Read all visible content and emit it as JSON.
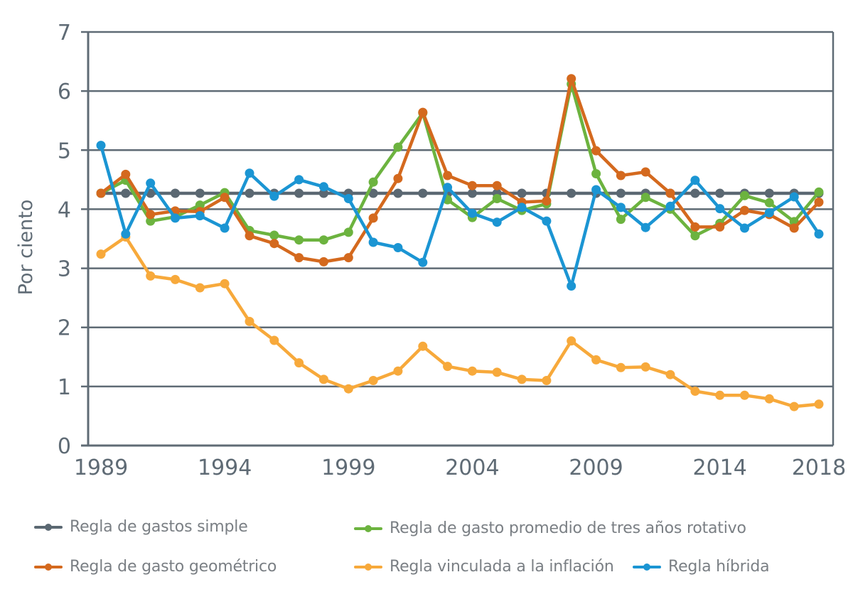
{
  "chart_data": {
    "type": "line",
    "title": "",
    "xlabel": "",
    "ylabel": "Por ciento",
    "ylim": [
      0,
      7
    ],
    "xlim": [
      1989,
      2018
    ],
    "grid": true,
    "legend_position": "bottom",
    "y_ticks": [
      "0",
      "1",
      "2",
      "3",
      "4",
      "5",
      "6",
      "7"
    ],
    "x_ticks": [
      "1989",
      "1994",
      "1999",
      "2004",
      "2009",
      "2014",
      "2018"
    ],
    "x": [
      1989,
      1990,
      1991,
      1992,
      1993,
      1994,
      1995,
      1996,
      1997,
      1998,
      1999,
      2000,
      2001,
      2002,
      2003,
      2004,
      2005,
      2006,
      2007,
      2008,
      2009,
      2010,
      2011,
      2012,
      2013,
      2014,
      2015,
      2016,
      2017,
      2018
    ],
    "series": [
      {
        "key": "simple",
        "name": "Regla de gastos simple",
        "color": "#5b6872",
        "values": [
          4.27,
          4.27,
          4.27,
          4.27,
          4.27,
          4.27,
          4.27,
          4.27,
          4.27,
          4.27,
          4.27,
          4.27,
          4.27,
          4.27,
          4.27,
          4.27,
          4.27,
          4.27,
          4.27,
          4.27,
          4.27,
          4.27,
          4.27,
          4.27,
          4.27,
          4.27,
          4.27,
          4.27,
          4.27,
          4.27
        ]
      },
      {
        "key": "promedio",
        "name": "Regla de gasto promedio de tres años rotativo",
        "color": "#6cb33f",
        "values": [
          4.27,
          4.49,
          3.8,
          3.87,
          4.07,
          4.28,
          3.64,
          3.56,
          3.48,
          3.48,
          3.61,
          4.46,
          5.05,
          5.63,
          4.16,
          3.86,
          4.18,
          3.98,
          4.09,
          6.12,
          4.6,
          3.83,
          4.2,
          4.0,
          3.55,
          3.76,
          4.23,
          4.11,
          3.79,
          4.29
        ]
      },
      {
        "key": "geometrico",
        "name": "Regla de gasto geométrico",
        "color": "#d4691e",
        "values": [
          4.27,
          4.59,
          3.91,
          3.97,
          3.96,
          4.2,
          3.55,
          3.42,
          3.18,
          3.11,
          3.18,
          3.85,
          4.52,
          5.64,
          4.57,
          4.4,
          4.4,
          4.12,
          4.14,
          6.21,
          4.99,
          4.57,
          4.63,
          4.27,
          3.7,
          3.7,
          3.98,
          3.91,
          3.68,
          4.12
        ]
      },
      {
        "key": "inflacion",
        "name": "Regla vinculada a la inflación",
        "color": "#f7a93b",
        "values": [
          3.24,
          3.53,
          2.87,
          2.81,
          2.67,
          2.74,
          2.1,
          1.78,
          1.4,
          1.12,
          0.96,
          1.1,
          1.26,
          1.68,
          1.34,
          1.26,
          1.24,
          1.12,
          1.1,
          1.77,
          1.45,
          1.32,
          1.33,
          1.2,
          0.92,
          0.85,
          0.85,
          0.79,
          0.66,
          0.7
        ]
      },
      {
        "key": "hibrida",
        "name": "Regla híbrida",
        "color": "#1b95d3",
        "values": [
          5.08,
          3.58,
          4.44,
          3.85,
          3.89,
          3.68,
          4.61,
          4.22,
          4.5,
          4.38,
          4.18,
          3.44,
          3.35,
          3.1,
          4.37,
          3.93,
          3.78,
          4.03,
          3.8,
          2.7,
          4.33,
          4.03,
          3.69,
          4.05,
          4.49,
          4.01,
          3.68,
          3.94,
          4.21,
          3.58
        ]
      }
    ],
    "draw_order": [
      "simple",
      "promedio",
      "geometrico",
      "inflacion",
      "hibrida"
    ],
    "axis_color": "#5f6b75"
  },
  "legend": {
    "items": [
      {
        "key": "simple",
        "label": "Regla de gastos simple",
        "color": "#5b6872"
      },
      {
        "key": "promedio",
        "label": "Regla de gasto promedio de tres años rotativo",
        "color": "#6cb33f"
      },
      {
        "key": "geometrico",
        "label": "Regla de gasto geométrico",
        "color": "#d4691e"
      },
      {
        "key": "inflacion",
        "label": "Regla vinculada a la inflación",
        "color": "#f7a93b"
      },
      {
        "key": "hibrida",
        "label": "Regla híbrida",
        "color": "#1b95d3"
      }
    ]
  }
}
